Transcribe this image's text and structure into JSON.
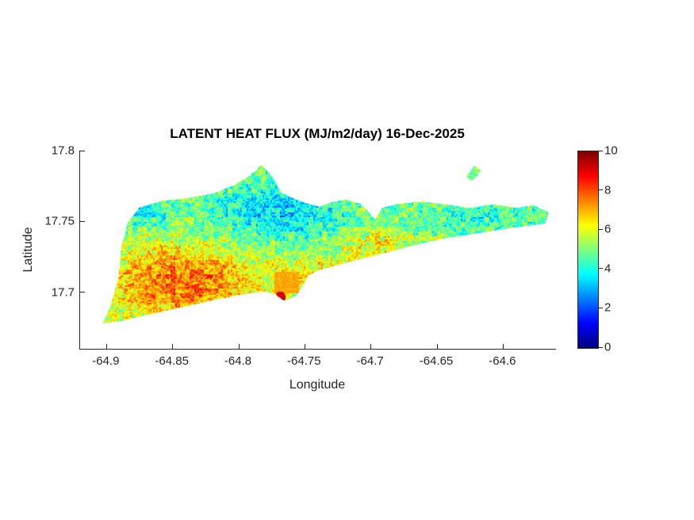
{
  "chart_data": {
    "type": "heatmap",
    "title": "LATENT HEAT FLUX (MJ/m2/day) 16-Dec-2025",
    "units": "MJ/m2/day",
    "date": "16-Dec-2025",
    "xlabel": "Longitude",
    "ylabel": "Latitude",
    "xlim": [
      -64.92,
      -64.56
    ],
    "ylim": [
      17.66,
      17.8
    ],
    "xticks": [
      -64.9,
      -64.85,
      -64.8,
      -64.75,
      -64.7,
      -64.65,
      -64.6
    ],
    "yticks": [
      17.7,
      17.75,
      17.8
    ],
    "grid": false,
    "colorbar": {
      "min": 0,
      "max": 10,
      "ticks": [
        0,
        2,
        4,
        6,
        8,
        10
      ],
      "colormap": "jet",
      "position": "right"
    },
    "colors": {
      "axis": "#262626",
      "title": "#000000",
      "background": "#ffffff"
    },
    "island_outline": [
      [
        -64.903,
        17.678
      ],
      [
        -64.897,
        17.69
      ],
      [
        -64.891,
        17.71
      ],
      [
        -64.889,
        17.731
      ],
      [
        -64.884,
        17.749
      ],
      [
        -64.875,
        17.76
      ],
      [
        -64.858,
        17.7645
      ],
      [
        -64.838,
        17.7665
      ],
      [
        -64.818,
        17.77
      ],
      [
        -64.803,
        17.776
      ],
      [
        -64.792,
        17.782
      ],
      [
        -64.7825,
        17.79
      ],
      [
        -64.7745,
        17.7815
      ],
      [
        -64.768,
        17.7705
      ],
      [
        -64.758,
        17.766
      ],
      [
        -64.748,
        17.7625
      ],
      [
        -64.739,
        17.7605
      ],
      [
        -64.73,
        17.7635
      ],
      [
        -64.719,
        17.7655
      ],
      [
        -64.708,
        17.7625
      ],
      [
        -64.7015,
        17.7565
      ],
      [
        -64.697,
        17.7515
      ],
      [
        -64.6915,
        17.7595
      ],
      [
        -64.679,
        17.7625
      ],
      [
        -64.661,
        17.764
      ],
      [
        -64.6435,
        17.762
      ],
      [
        -64.626,
        17.7595
      ],
      [
        -64.6075,
        17.762
      ],
      [
        -64.589,
        17.7595
      ],
      [
        -64.5775,
        17.7615
      ],
      [
        -64.5655,
        17.7565
      ],
      [
        -64.568,
        17.7485
      ],
      [
        -64.596,
        17.745
      ],
      [
        -64.62,
        17.7415
      ],
      [
        -64.644,
        17.738
      ],
      [
        -64.668,
        17.733
      ],
      [
        -64.692,
        17.727
      ],
      [
        -64.716,
        17.7215
      ],
      [
        -64.7395,
        17.7155
      ],
      [
        -64.7475,
        17.7115
      ],
      [
        -64.752,
        17.7035
      ],
      [
        -64.757,
        17.697
      ],
      [
        -64.766,
        17.694
      ],
      [
        -64.7725,
        17.6985
      ],
      [
        -64.781,
        17.7005
      ],
      [
        -64.8,
        17.698
      ],
      [
        -64.823,
        17.6935
      ],
      [
        -64.847,
        17.6885
      ],
      [
        -64.871,
        17.6835
      ],
      [
        -64.889,
        17.6795
      ]
    ],
    "islets": [
      [
        [
          -64.628,
          17.7815
        ],
        [
          -64.6215,
          17.7895
        ],
        [
          -64.6165,
          17.7855
        ],
        [
          -64.6235,
          17.7785
        ]
      ]
    ],
    "value_field": {
      "base": 5.1,
      "gaussians": [
        {
          "lon": -64.845,
          "lat": 17.706,
          "amp": 2.7,
          "slon": 0.055,
          "slat": 0.027
        },
        {
          "lon": -64.73,
          "lat": 17.712,
          "amp": 1.1,
          "slon": 0.05,
          "slat": 0.016
        },
        {
          "lon": -64.77,
          "lat": 17.757,
          "amp": -1.7,
          "slon": 0.05,
          "slat": 0.021
        },
        {
          "lon": -64.62,
          "lat": 17.754,
          "amp": -0.9,
          "slon": 0.045,
          "slat": 0.014
        },
        {
          "lon": -64.872,
          "lat": 17.757,
          "amp": -1.3,
          "slon": 0.018,
          "slat": 0.012
        },
        {
          "lon": -64.693,
          "lat": 17.734,
          "amp": 1.2,
          "slon": 0.02,
          "slat": 0.012
        }
      ],
      "noise": [
        {
          "cell": 2,
          "amp": 1.0
        },
        {
          "cell": 6,
          "amp": 0.8
        }
      ],
      "clamp": [
        0.8,
        9.7
      ]
    },
    "hotspots": [
      {
        "type": "rect",
        "lon0": -64.773,
        "lon1": -64.7545,
        "lat0": 17.699,
        "lat1": 17.7145,
        "value": 7.1
      },
      {
        "type": "spot",
        "lon": -64.7685,
        "lat": 17.6965,
        "r": 0.004,
        "value": 9.2
      }
    ]
  }
}
